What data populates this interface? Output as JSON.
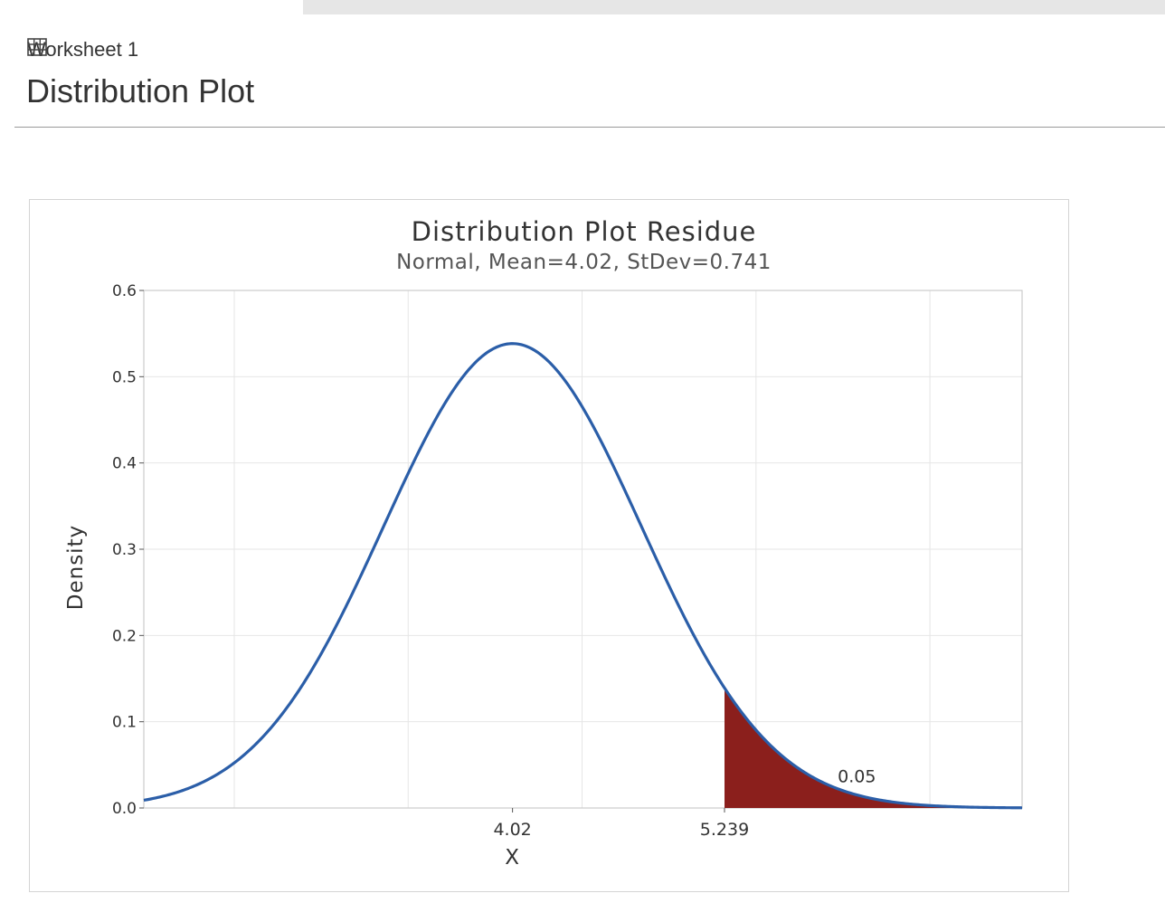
{
  "worksheet": {
    "tab_label": "Worksheet 1",
    "icon": "table-grid-icon"
  },
  "page": {
    "title": "Distribution Plot"
  },
  "chart_data": {
    "type": "area",
    "title": "Distribution Plot Residue",
    "subtitle": "Normal, Mean=4.02, StDev=0.741",
    "distribution": "normal",
    "mean": 4.02,
    "stdev": 0.741,
    "xlabel": "X",
    "ylabel": "Density",
    "xlim": [
      1.9,
      6.95
    ],
    "ylim": [
      0,
      0.6
    ],
    "y_ticks": [
      "0.0",
      "0.1",
      "0.2",
      "0.3",
      "0.4",
      "0.5",
      "0.6"
    ],
    "x_ticks": [
      "4.02",
      "5.239"
    ],
    "x_tick_values": [
      4.02,
      5.239
    ],
    "x_grid_values": [
      2.42,
      3.42,
      4.42,
      5.42,
      6.42
    ],
    "shaded_region": {
      "from": 5.239,
      "to": 6.95,
      "probability": 0.05,
      "label": "0.05"
    },
    "grid": true,
    "colors": {
      "curve": "#2b5ea8",
      "shade": "#8b1f1c",
      "grid": "#e6e6e6",
      "frame": "#cccccc"
    }
  }
}
